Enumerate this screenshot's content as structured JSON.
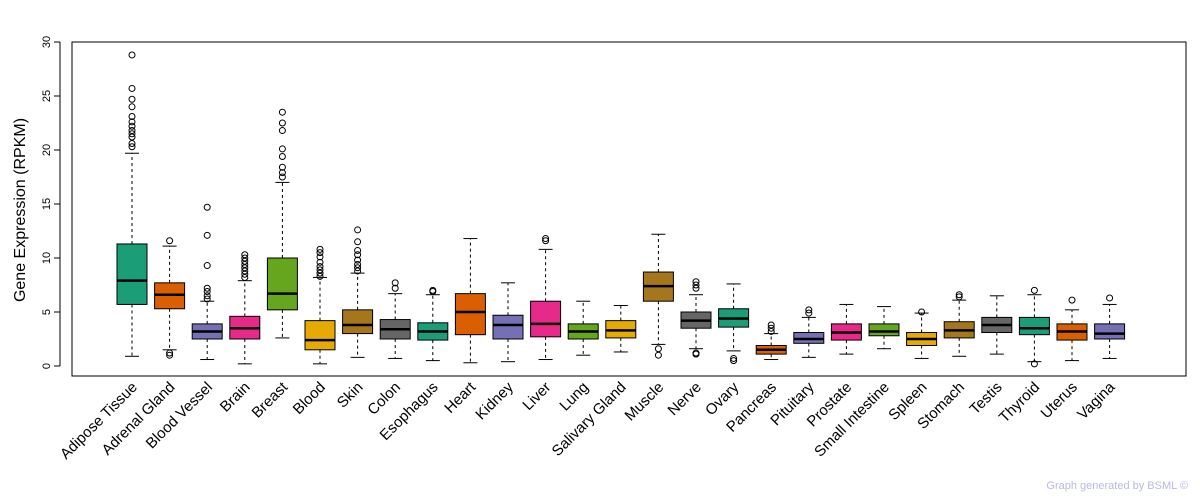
{
  "chart_data": {
    "type": "boxplot",
    "title": "",
    "xlabel": "",
    "ylabel": "Gene Expression (RPKM)",
    "ylim": [
      0,
      30
    ],
    "yticks": [
      0,
      5,
      10,
      15,
      20,
      25,
      30
    ],
    "highlight_category": "Brain",
    "highlight_color": "#ff0000",
    "categories": [
      "Adipose Tissue",
      "Adrenal Gland",
      "Blood Vessel",
      "Brain",
      "Breast",
      "Blood",
      "Skin",
      "Colon",
      "Esophagus",
      "Heart",
      "Kidney",
      "Liver",
      "Lung",
      "Salivary Gland",
      "Muscle",
      "Nerve",
      "Ovary",
      "Pancreas",
      "Pituitary",
      "Prostate",
      "Small Intestine",
      "Spleen",
      "Stomach",
      "Testis",
      "Thyroid",
      "Uterus",
      "Vagina"
    ],
    "boxes": [
      {
        "name": "Adipose Tissue",
        "color": "#1b9e77",
        "whisker_low": 0.9,
        "q1": 5.7,
        "median": 7.9,
        "q3": 11.3,
        "whisker_high": 19.7,
        "outliers": [
          20.3,
          20.6,
          21.2,
          21.5,
          21.8,
          22.2,
          22.6,
          23.1,
          24.0,
          24.7,
          25.7,
          28.8
        ]
      },
      {
        "name": "Adrenal Gland",
        "color": "#d95f02",
        "whisker_low": 1.5,
        "q1": 5.3,
        "median": 6.6,
        "q3": 7.7,
        "whisker_high": 11.1,
        "outliers": [
          1.0,
          1.2,
          11.6
        ]
      },
      {
        "name": "Blood Vessel",
        "color": "#7570b3",
        "whisker_low": 0.6,
        "q1": 2.5,
        "median": 3.2,
        "q3": 3.9,
        "whisker_high": 6.0,
        "outliers": [
          6.2,
          6.5,
          6.9,
          7.2,
          9.3,
          12.1,
          14.7
        ]
      },
      {
        "name": "Brain",
        "color": "#e7298a",
        "whisker_low": 0.2,
        "q1": 2.5,
        "median": 3.5,
        "q3": 4.6,
        "whisker_high": 7.9,
        "outliers": [
          8.2,
          8.5,
          8.8,
          9.1,
          9.4,
          9.7,
          10.0,
          10.3
        ]
      },
      {
        "name": "Breast",
        "color": "#66a61e",
        "whisker_low": 2.6,
        "q1": 5.2,
        "median": 6.7,
        "q3": 10.0,
        "whisker_high": 17.0,
        "outliers": [
          17.5,
          17.9,
          18.4,
          19.4,
          20.1,
          21.8,
          22.5,
          23.5
        ]
      },
      {
        "name": "Blood",
        "color": "#e6ab02",
        "whisker_low": 0.2,
        "q1": 1.5,
        "median": 2.4,
        "q3": 4.2,
        "whisker_high": 8.2,
        "outliers": [
          8.3,
          8.6,
          8.9,
          9.2,
          9.6,
          10.1,
          10.5,
          10.8
        ]
      },
      {
        "name": "Skin",
        "color": "#a6761d",
        "whisker_low": 0.8,
        "q1": 3.0,
        "median": 3.8,
        "q3": 5.2,
        "whisker_high": 8.6,
        "outliers": [
          8.8,
          9.1,
          9.4,
          9.8,
          10.3,
          10.7,
          11.5,
          12.6
        ]
      },
      {
        "name": "Colon",
        "color": "#666666",
        "whisker_low": 0.7,
        "q1": 2.5,
        "median": 3.4,
        "q3": 4.3,
        "whisker_high": 6.7,
        "outliers": [
          7.2,
          7.7
        ]
      },
      {
        "name": "Esophagus",
        "color": "#1b9e77",
        "whisker_low": 0.5,
        "q1": 2.4,
        "median": 3.2,
        "q3": 4.0,
        "whisker_high": 6.6,
        "outliers": [
          6.9,
          7.0
        ]
      },
      {
        "name": "Heart",
        "color": "#d95f02",
        "whisker_low": 0.3,
        "q1": 2.9,
        "median": 5.0,
        "q3": 6.7,
        "whisker_high": 11.8,
        "outliers": []
      },
      {
        "name": "Kidney",
        "color": "#7570b3",
        "whisker_low": 0.4,
        "q1": 2.5,
        "median": 3.8,
        "q3": 4.7,
        "whisker_high": 7.7,
        "outliers": []
      },
      {
        "name": "Liver",
        "color": "#e7298a",
        "whisker_low": 0.6,
        "q1": 2.7,
        "median": 3.9,
        "q3": 6.0,
        "whisker_high": 10.8,
        "outliers": [
          11.6,
          11.8
        ]
      },
      {
        "name": "Lung",
        "color": "#66a61e",
        "whisker_low": 1.0,
        "q1": 2.5,
        "median": 3.2,
        "q3": 3.9,
        "whisker_high": 6.0,
        "outliers": []
      },
      {
        "name": "Salivary Gland",
        "color": "#e6ab02",
        "whisker_low": 1.3,
        "q1": 2.6,
        "median": 3.3,
        "q3": 4.2,
        "whisker_high": 5.6,
        "outliers": []
      },
      {
        "name": "Muscle",
        "color": "#a6761d",
        "whisker_low": 2.0,
        "q1": 6.0,
        "median": 7.4,
        "q3": 8.7,
        "whisker_high": 12.2,
        "outliers": [
          1.0,
          1.6
        ]
      },
      {
        "name": "Nerve",
        "color": "#666666",
        "whisker_low": 1.6,
        "q1": 3.5,
        "median": 4.2,
        "q3": 5.0,
        "whisker_high": 6.6,
        "outliers": [
          1.1,
          1.2,
          7.2,
          7.5,
          7.8
        ]
      },
      {
        "name": "Ovary",
        "color": "#1b9e77",
        "whisker_low": 1.4,
        "q1": 3.6,
        "median": 4.4,
        "q3": 5.3,
        "whisker_high": 7.6,
        "outliers": [
          0.5,
          0.7
        ]
      },
      {
        "name": "Pancreas",
        "color": "#d95f02",
        "whisker_low": 0.6,
        "q1": 1.1,
        "median": 1.5,
        "q3": 1.9,
        "whisker_high": 3.0,
        "outliers": [
          3.2,
          3.5,
          3.8
        ]
      },
      {
        "name": "Pituitary",
        "color": "#7570b3",
        "whisker_low": 0.8,
        "q1": 2.1,
        "median": 2.5,
        "q3": 3.1,
        "whisker_high": 4.5,
        "outliers": [
          4.9,
          5.2
        ]
      },
      {
        "name": "Prostate",
        "color": "#e7298a",
        "whisker_low": 1.1,
        "q1": 2.4,
        "median": 3.1,
        "q3": 3.9,
        "whisker_high": 5.7,
        "outliers": []
      },
      {
        "name": "Small Intestine",
        "color": "#66a61e",
        "whisker_low": 1.6,
        "q1": 2.8,
        "median": 3.2,
        "q3": 3.9,
        "whisker_high": 5.5,
        "outliers": []
      },
      {
        "name": "Spleen",
        "color": "#e6ab02",
        "whisker_low": 0.7,
        "q1": 1.9,
        "median": 2.5,
        "q3": 3.1,
        "whisker_high": 4.9,
        "outliers": [
          5.0
        ]
      },
      {
        "name": "Stomach",
        "color": "#a6761d",
        "whisker_low": 0.9,
        "q1": 2.6,
        "median": 3.3,
        "q3": 4.1,
        "whisker_high": 6.1,
        "outliers": [
          6.4,
          6.6
        ]
      },
      {
        "name": "Testis",
        "color": "#666666",
        "whisker_low": 1.1,
        "q1": 3.1,
        "median": 3.8,
        "q3": 4.5,
        "whisker_high": 6.5,
        "outliers": []
      },
      {
        "name": "Thyroid",
        "color": "#1b9e77",
        "whisker_low": 0.4,
        "q1": 2.9,
        "median": 3.5,
        "q3": 4.5,
        "whisker_high": 6.6,
        "outliers": [
          0.2,
          7.0
        ]
      },
      {
        "name": "Uterus",
        "color": "#d95f02",
        "whisker_low": 0.5,
        "q1": 2.4,
        "median": 3.2,
        "q3": 3.9,
        "whisker_high": 5.2,
        "outliers": [
          6.1
        ]
      },
      {
        "name": "Vagina",
        "color": "#7570b3",
        "whisker_low": 0.7,
        "q1": 2.5,
        "median": 3.0,
        "q3": 3.9,
        "whisker_high": 5.7,
        "outliers": [
          6.3
        ]
      }
    ]
  },
  "footer": {
    "credit": "Graph generated by BSML ©"
  }
}
